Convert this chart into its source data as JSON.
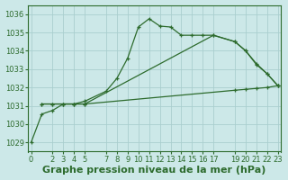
{
  "title": "Graphe pression niveau de la mer (hPa)",
  "bg_color": "#cce8e8",
  "grid_color": "#aacece",
  "line_color": "#2d6b2d",
  "ylim": [
    1028.5,
    1036.5
  ],
  "yticks": [
    1029,
    1030,
    1031,
    1032,
    1033,
    1034,
    1035,
    1036
  ],
  "xlim": [
    -0.3,
    23.3
  ],
  "xticks": [
    0,
    2,
    3,
    4,
    5,
    7,
    8,
    9,
    10,
    11,
    12,
    13,
    14,
    15,
    16,
    17,
    19,
    20,
    21,
    22,
    23
  ],
  "line1_x": [
    0,
    1,
    2,
    3,
    4,
    5,
    7,
    8,
    9,
    10,
    11,
    12,
    13,
    14,
    15,
    16,
    17,
    19,
    20,
    21,
    22,
    23
  ],
  "line1_y": [
    1029.0,
    1030.55,
    1030.75,
    1031.1,
    1031.1,
    1031.25,
    1031.8,
    1032.5,
    1033.6,
    1035.3,
    1035.75,
    1035.35,
    1035.3,
    1034.85,
    1034.85,
    1034.85,
    1034.85,
    1034.5,
    1034.0,
    1033.3,
    1032.75,
    1032.1
  ],
  "line2_x": [
    1,
    2,
    3,
    4,
    5,
    17,
    19,
    20,
    21,
    22,
    23
  ],
  "line2_y": [
    1031.1,
    1031.1,
    1031.1,
    1031.1,
    1031.1,
    1034.85,
    1034.5,
    1034.0,
    1033.25,
    1032.75,
    1032.1
  ],
  "line3_x": [
    1,
    2,
    3,
    4,
    5,
    19,
    20,
    21,
    22,
    23
  ],
  "line3_y": [
    1031.1,
    1031.1,
    1031.1,
    1031.1,
    1031.1,
    1031.85,
    1031.9,
    1031.95,
    1032.0,
    1032.1
  ],
  "title_fontsize": 8,
  "tick_fontsize": 6
}
